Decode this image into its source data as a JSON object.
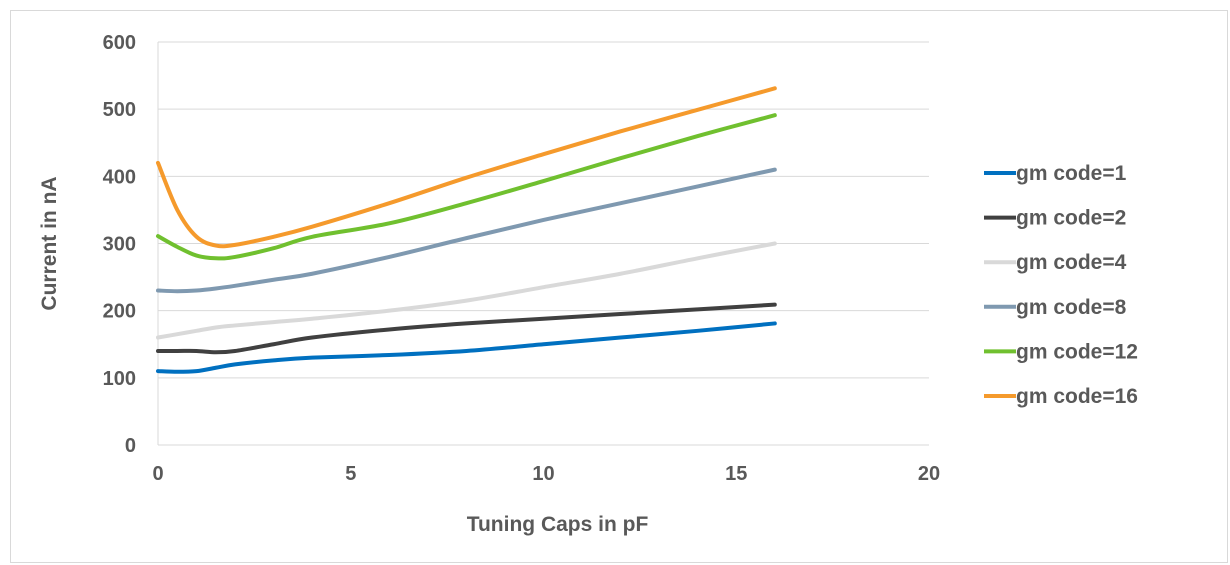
{
  "chart_data": {
    "type": "line",
    "title": "",
    "xlabel": "Tuning Caps in pF",
    "ylabel": "Current in nA",
    "xlim": [
      0,
      20
    ],
    "ylim": [
      0,
      600
    ],
    "xticks": [
      0,
      5,
      10,
      15,
      20
    ],
    "yticks": [
      0,
      100,
      200,
      300,
      400,
      500,
      600
    ],
    "grid": "horizontal",
    "legend_position": "right",
    "x": [
      0,
      0.5,
      1,
      1.5,
      2,
      3,
      4,
      6,
      8,
      10,
      12,
      14,
      16
    ],
    "series": [
      {
        "name": "gm code=1",
        "color": "#0070c0",
        "values": [
          110,
          109,
          110,
          115,
          120,
          126,
          130,
          134,
          140,
          150,
          160,
          170,
          181
        ]
      },
      {
        "name": "gm code=2",
        "color": "#404040",
        "values": [
          140,
          140,
          140,
          138,
          140,
          150,
          160,
          172,
          181,
          188,
          195,
          202,
          209
        ]
      },
      {
        "name": "gm code=4",
        "color": "#d9d9d9",
        "values": [
          160,
          165,
          170,
          175,
          178,
          183,
          188,
          200,
          215,
          235,
          255,
          278,
          300
        ]
      },
      {
        "name": "gm code=8",
        "color": "#7f99b0",
        "values": [
          230,
          229,
          230,
          233,
          237,
          246,
          255,
          280,
          308,
          335,
          360,
          385,
          410
        ]
      },
      {
        "name": "gm code=12",
        "color": "#70c02f",
        "values": [
          311,
          295,
          282,
          278,
          280,
          293,
          310,
          330,
          360,
          393,
          427,
          460,
          491
        ]
      },
      {
        "name": "gm code=16",
        "color": "#f59a2c",
        "values": [
          420,
          350,
          310,
          297,
          298,
          310,
          325,
          360,
          398,
          433,
          467,
          499,
          531
        ]
      }
    ]
  }
}
